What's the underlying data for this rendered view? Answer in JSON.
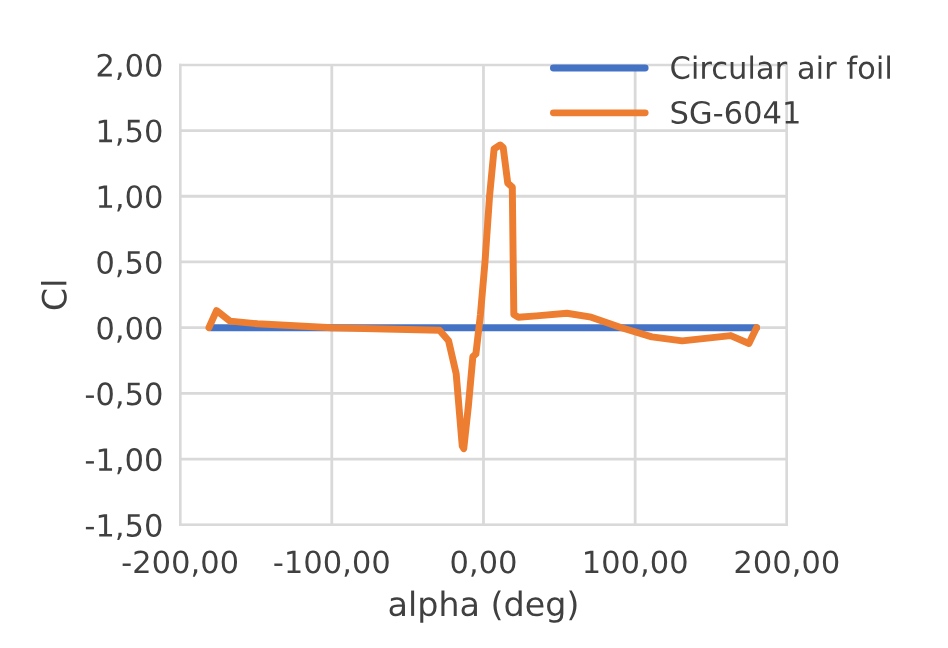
{
  "chart_data": {
    "type": "line",
    "xlabel": "alpha (deg)",
    "ylabel": "Cl",
    "xlim": [
      -200,
      200
    ],
    "ylim": [
      -1.5,
      2
    ],
    "xticks": [
      {
        "value": -200,
        "label": "-200,00"
      },
      {
        "value": -100,
        "label": "-100,00"
      },
      {
        "value": 0,
        "label": "0,00"
      },
      {
        "value": 100,
        "label": "100,00"
      },
      {
        "value": 200,
        "label": "200,00"
      }
    ],
    "yticks": [
      {
        "value": -1.5,
        "label": "-1,50"
      },
      {
        "value": -1,
        "label": "-1,00"
      },
      {
        "value": -0.5,
        "label": "-0,50"
      },
      {
        "value": 0,
        "label": "0,00"
      },
      {
        "value": 0.5,
        "label": "0,50"
      },
      {
        "value": 1,
        "label": "1,00"
      },
      {
        "value": 1.5,
        "label": "1,50"
      },
      {
        "value": 2,
        "label": "2,00"
      }
    ],
    "grid": true,
    "legend": "top right",
    "marker": "none",
    "line_style": "solid",
    "series": [
      {
        "name": "Circular air foil",
        "color": "#4472c4",
        "x": [
          -180,
          180
        ],
        "values": [
          0,
          0
        ]
      },
      {
        "name": "SG-6041",
        "color": "#ed7d31",
        "x": [
          -181,
          -176,
          -167,
          -149,
          -100,
          -29,
          -23,
          -18,
          -14,
          -13,
          -10,
          -7,
          -5,
          -2,
          1,
          4,
          7,
          11,
          13,
          16,
          19,
          20,
          23,
          35,
          55,
          71,
          91,
          111,
          131,
          163,
          175,
          180
        ],
        "values": [
          0,
          0.13,
          0.05,
          0.03,
          0,
          -0.02,
          -0.1,
          -0.35,
          -0.9,
          -0.92,
          -0.6,
          -0.22,
          -0.2,
          0.1,
          0.5,
          1.0,
          1.36,
          1.39,
          1.37,
          1.1,
          1.07,
          0.1,
          0.08,
          0.09,
          0.11,
          0.08,
          0,
          -0.07,
          -0.1,
          -0.06,
          -0.12,
          0
        ]
      }
    ]
  }
}
